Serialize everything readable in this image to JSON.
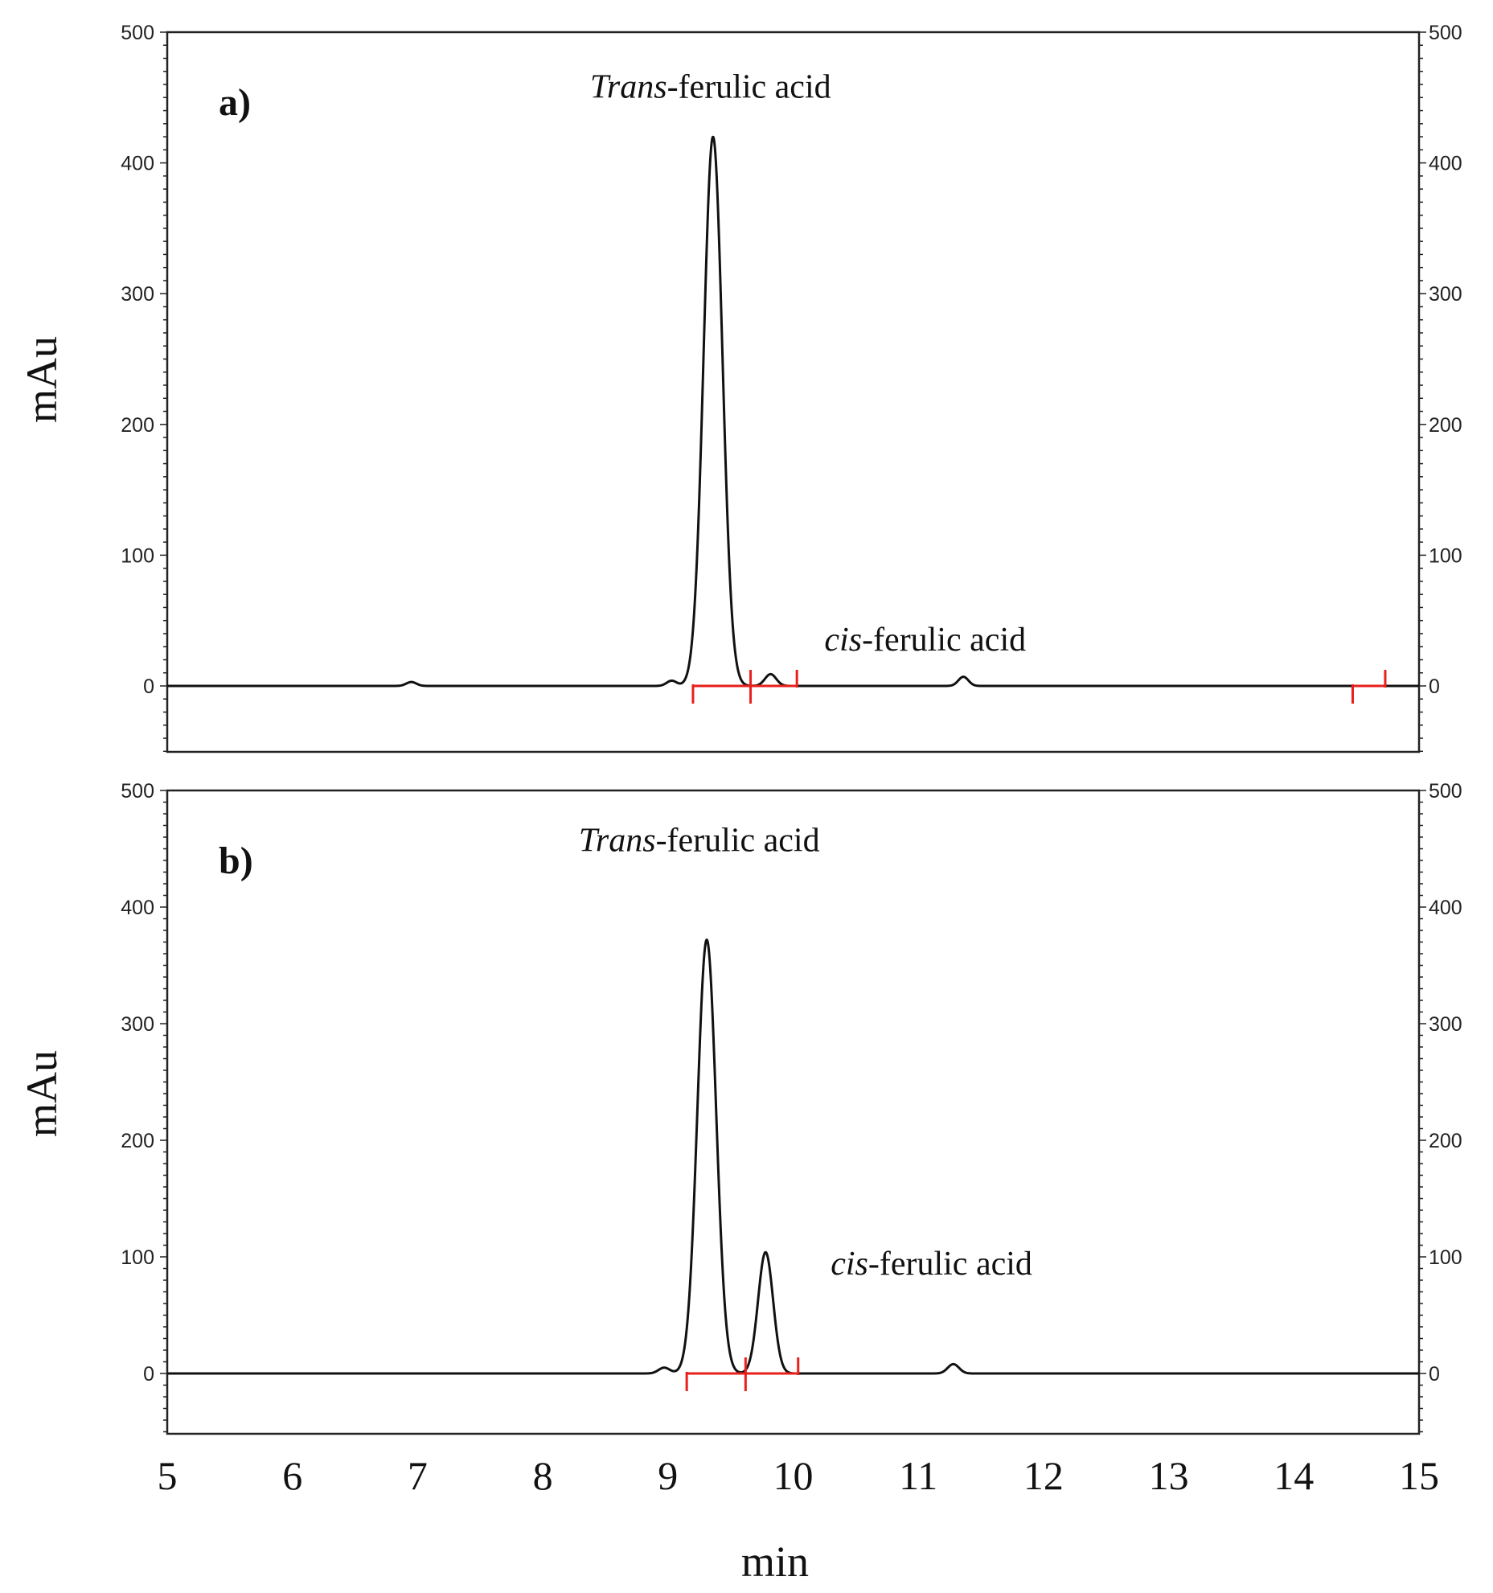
{
  "chart_data": [
    {
      "type": "line",
      "panel_label": "a)",
      "xlabel": "",
      "ylabel": "mAu",
      "xlim": [
        5,
        15
      ],
      "ylim": [
        -50,
        500
      ],
      "y_ticks": [
        "500",
        "400",
        "300",
        "200",
        "100",
        "0"
      ],
      "right_y_ticks": true,
      "grid": false,
      "baseline": 0,
      "peaks": [
        {
          "rt": 6.95,
          "height": 3,
          "sigma": 0.04
        },
        {
          "rt": 9.03,
          "height": 4,
          "sigma": 0.04
        },
        {
          "rt": 9.36,
          "height": 420,
          "sigma": 0.075
        },
        {
          "rt": 9.82,
          "height": 9,
          "sigma": 0.045
        },
        {
          "rt": 11.36,
          "height": 7,
          "sigma": 0.04
        }
      ],
      "integration_markers": [
        {
          "from": 9.2,
          "to": 9.66
        },
        {
          "from": 9.66,
          "to": 10.03
        },
        {
          "from": 14.47,
          "to": 14.73
        }
      ],
      "annotations": [
        {
          "italic": "Trans",
          "text": "-ferulic acid",
          "x": 9.34,
          "y": 450
        },
        {
          "italic": "cis",
          "text": "-ferulic acid",
          "x": 10.25,
          "y": 27
        }
      ]
    },
    {
      "type": "line",
      "panel_label": "b)",
      "xlabel": "min",
      "ylabel": "mAu",
      "xlim": [
        5,
        15
      ],
      "ylim": [
        -50,
        500
      ],
      "y_ticks": [
        "500",
        "400",
        "300",
        "200",
        "100",
        "0"
      ],
      "right_y_ticks": true,
      "grid": false,
      "baseline": 0,
      "x_ticks": [
        "5",
        "6",
        "7",
        "8",
        "9",
        "10",
        "11",
        "12",
        "13",
        "14",
        "15"
      ],
      "peaks": [
        {
          "rt": 8.97,
          "height": 5,
          "sigma": 0.045
        },
        {
          "rt": 9.31,
          "height": 372,
          "sigma": 0.075
        },
        {
          "rt": 9.78,
          "height": 104,
          "sigma": 0.06
        },
        {
          "rt": 11.28,
          "height": 8,
          "sigma": 0.045
        }
      ],
      "integration_markers": [
        {
          "from": 9.15,
          "to": 9.62
        },
        {
          "from": 9.62,
          "to": 10.04
        }
      ],
      "annotations": [
        {
          "italic": "Trans",
          "text": "-ferulic acid",
          "x": 9.25,
          "y": 448
        },
        {
          "italic": "cis",
          "text": "-ferulic acid",
          "x": 10.3,
          "y": 85
        }
      ]
    }
  ],
  "colors": {
    "trace": "#111111",
    "integration": "#e8201c",
    "axis": "#222222"
  }
}
